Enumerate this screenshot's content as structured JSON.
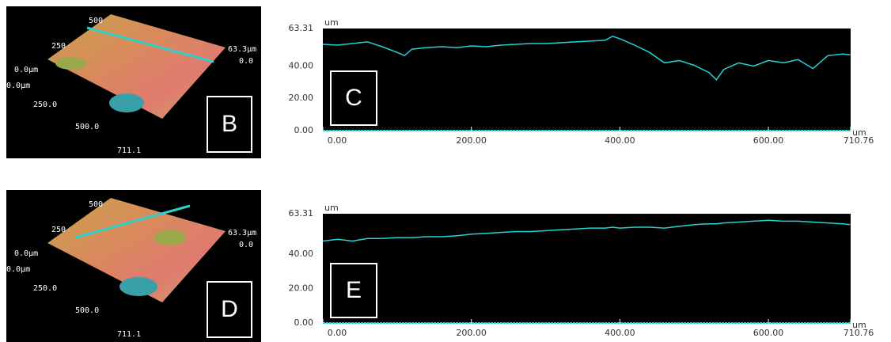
{
  "surface_panels": [
    {
      "label": "B",
      "axis_texts": {
        "y_end": "500",
        "y_mid": "250",
        "z_zero_left": "0.0μm",
        "x_zero": "0.0μm",
        "x_mid": "250.0",
        "x_500": "500.0",
        "x_end": "711.1",
        "z_top": "63.3μm",
        "z_zero": "0.0"
      }
    },
    {
      "label": "D",
      "axis_texts": {
        "y_end": "500",
        "y_mid": "250",
        "z_zero_left": "0.0μm",
        "x_zero": "0.0μm",
        "x_mid": "250.0",
        "x_500": "500.0",
        "x_end": "711.1",
        "z_top": "63.3μm",
        "z_zero": "0.0"
      }
    }
  ],
  "chart_data": [
    {
      "type": "line",
      "annotation": "C",
      "xlabel": "um",
      "ylabel": "um",
      "color": "#22d3d6",
      "x": [
        0,
        20,
        40,
        60,
        80,
        100,
        110,
        120,
        140,
        160,
        180,
        200,
        220,
        240,
        260,
        280,
        300,
        320,
        340,
        360,
        380,
        390,
        400,
        420,
        440,
        460,
        480,
        500,
        520,
        530,
        540,
        560,
        580,
        600,
        620,
        640,
        660,
        680,
        700,
        710
      ],
      "values": [
        53.5,
        53.0,
        54.0,
        55.0,
        52.0,
        48.5,
        46.5,
        50.5,
        51.5,
        52.0,
        51.5,
        52.5,
        52.0,
        53.0,
        53.5,
        54.0,
        54.0,
        54.5,
        55.0,
        55.5,
        56.0,
        58.5,
        57.0,
        53.0,
        48.5,
        42.0,
        43.5,
        40.5,
        36.0,
        31.5,
        38.0,
        42.0,
        40.0,
        43.5,
        42.0,
        44.0,
        38.5,
        46.5,
        47.5,
        47.0
      ],
      "xlim": [
        0,
        710.76
      ],
      "ylim": [
        0,
        63.31
      ],
      "xticks": [
        {
          "value": 0,
          "label": "0.00"
        },
        {
          "value": 200,
          "label": "200.00"
        },
        {
          "value": 400,
          "label": "400.00"
        },
        {
          "value": 600,
          "label": "600.00"
        },
        {
          "value": 710.76,
          "label": "710.76"
        }
      ],
      "yticks": [
        {
          "value": 0,
          "label": "0.00"
        },
        {
          "value": 20,
          "label": "20.00"
        },
        {
          "value": 40,
          "label": "40.00"
        },
        {
          "value": 63.31,
          "label": "63.31"
        }
      ]
    },
    {
      "type": "line",
      "annotation": "E",
      "xlabel": "um",
      "ylabel": "um",
      "color": "#22d3d6",
      "x": [
        0,
        20,
        40,
        60,
        80,
        100,
        110,
        120,
        140,
        160,
        180,
        200,
        220,
        240,
        260,
        280,
        300,
        320,
        340,
        360,
        380,
        390,
        400,
        420,
        440,
        460,
        480,
        500,
        520,
        530,
        540,
        560,
        580,
        600,
        620,
        640,
        660,
        680,
        700,
        710
      ],
      "values": [
        47.5,
        48.5,
        47.5,
        49.0,
        49.0,
        49.5,
        49.5,
        49.5,
        50.0,
        50.0,
        50.5,
        51.5,
        52.0,
        52.5,
        53.0,
        53.0,
        53.5,
        54.0,
        54.5,
        55.0,
        55.0,
        55.5,
        55.0,
        55.5,
        55.5,
        55.0,
        56.0,
        57.0,
        57.5,
        57.5,
        58.0,
        58.5,
        59.0,
        59.5,
        59.0,
        59.0,
        58.5,
        58.0,
        57.5,
        57.0
      ],
      "xlim": [
        0,
        710.76
      ],
      "ylim": [
        0,
        63.31
      ],
      "xticks": [
        {
          "value": 0,
          "label": "0.00"
        },
        {
          "value": 200,
          "label": "200.00"
        },
        {
          "value": 400,
          "label": "400.00"
        },
        {
          "value": 600,
          "label": "600.00"
        },
        {
          "value": 710.76,
          "label": "710.76"
        }
      ],
      "yticks": [
        {
          "value": 0,
          "label": "0.00"
        },
        {
          "value": 20,
          "label": "20.00"
        },
        {
          "value": 40,
          "label": "40.00"
        },
        {
          "value": 63.31,
          "label": "63.31"
        }
      ]
    }
  ]
}
